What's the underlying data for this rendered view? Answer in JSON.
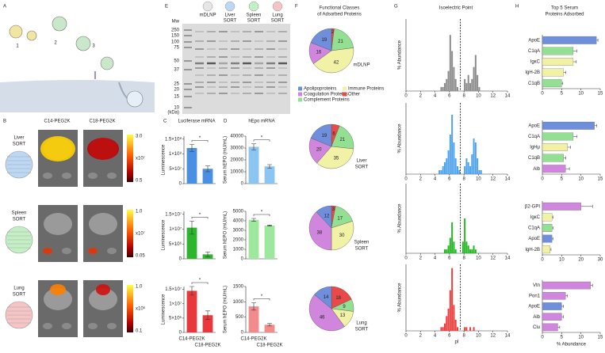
{
  "panels": {
    "letters": [
      "A",
      "B",
      "C",
      "D",
      "E",
      "F",
      "G",
      "H"
    ],
    "A": {
      "steps": [
        "1",
        "2",
        "3"
      ]
    },
    "B": {
      "columns": [
        "C14-PEG2K",
        "C18-PEG2K"
      ],
      "rows": [
        [
          "Liver",
          "SORT"
        ],
        [
          "Spleen",
          "SORT"
        ],
        [
          "Lung",
          "SORT"
        ]
      ],
      "colorbars": [
        [
          "3.0",
          "x10⁷",
          "0.5"
        ],
        [
          "1.0",
          "x10⁷",
          "0.05"
        ],
        [
          "1.0",
          "x10⁶",
          "0.1"
        ]
      ]
    },
    "C": {
      "title": "Luciferase mRNA"
    },
    "D": {
      "title": "hEpo mRNA"
    },
    "E": {
      "mw": "Mw",
      "unit": "(kDa)",
      "ladder": [
        "250",
        "150",
        "100",
        "75",
        "50",
        "37",
        "25",
        "20",
        "15",
        "10"
      ],
      "lanes": [
        [
          "mDLNP"
        ],
        [
          "Liver",
          "SORT"
        ],
        [
          "Spleen",
          "SORT"
        ],
        [
          "Lung",
          "SORT"
        ]
      ]
    },
    "F": {
      "title": [
        "Functional Classes",
        "of Adsorbed Proteins"
      ],
      "legend": [
        {
          "name": "Apolipoproteins",
          "color": "#6f8fdc"
        },
        {
          "name": "Coagulation Proteins",
          "color": "#cf86dc"
        },
        {
          "name": "Complement Proteins",
          "color": "#93e093"
        },
        {
          "name": "Immune Proteins",
          "color": "#f2f2a6"
        },
        {
          "name": "Other",
          "color": "#e84a4a"
        }
      ]
    },
    "G": {
      "title": "Isoelectric Point"
    },
    "H": {
      "title": [
        "Top 5 Serum",
        "Proteins Adsorbed"
      ]
    }
  },
  "chart_data": [
    {
      "type": "bar",
      "ylabel": "Luminescence",
      "categories": [
        null,
        null
      ],
      "values": [
        120000000,
        50000000
      ],
      "errors": [
        12000000,
        10000000
      ],
      "color": "#4a90e2",
      "ylim": [
        0,
        160000000
      ],
      "yticks": [
        0,
        {
          "value": 50000000,
          "label": "5×10⁷"
        },
        {
          "value": 100000000,
          "label": "1×10⁸"
        },
        {
          "value": 150000000,
          "label": "1.5×10⁸"
        }
      ],
      "annotation": "*"
    },
    {
      "type": "bar",
      "ylabel": "Luminescence",
      "categories": [
        null,
        null
      ],
      "values": [
        10500000,
        1500000
      ],
      "errors": [
        2200000,
        800000
      ],
      "color": "#2db52d",
      "ylim": [
        0,
        16000000
      ],
      "yticks": [
        0,
        {
          "value": 5000000,
          "label": "5×10⁶"
        },
        {
          "value": 10000000,
          "label": "1×10⁷"
        },
        {
          "value": 15000000,
          "label": "1.5×10⁷"
        }
      ],
      "annotation": "*"
    },
    {
      "type": "bar",
      "ylabel": "Luminescence",
      "categories": [
        "C14-PEG2K",
        "C18-PEG2K"
      ],
      "values": [
        14500000,
        6000000
      ],
      "errors": [
        1500000,
        1500000
      ],
      "color": "#e8383d",
      "ylim": [
        0,
        16000000
      ],
      "yticks": [
        0,
        {
          "value": 5000000,
          "label": "5×10⁶"
        },
        {
          "value": 10000000,
          "label": "1×10⁷"
        },
        {
          "value": 15000000,
          "label": "1.5×10⁷"
        }
      ],
      "annotation": "*"
    },
    {
      "type": "bar",
      "ylabel": "Serum hEPO (mU/mL)",
      "categories": [
        null,
        null
      ],
      "values": [
        31000,
        14500
      ],
      "errors": [
        2500,
        1500
      ],
      "color": "#8cc4f2",
      "ylim": [
        0,
        40000
      ],
      "yticks": [
        0,
        10000,
        20000,
        30000,
        40000
      ],
      "annotation": "*"
    },
    {
      "type": "bar",
      "ylabel": "Serum hEPO (mU/mL)",
      "categories": [
        null,
        null
      ],
      "values": [
        4100,
        3500
      ],
      "errors": [
        150,
        60
      ],
      "color": "#9de89d",
      "ylim": [
        0,
        5000
      ],
      "yticks": [
        0,
        1000,
        2000,
        3000,
        4000,
        5000
      ],
      "annotation": "*"
    },
    {
      "type": "bar",
      "ylabel": "Serum hEPO (mU/mL)",
      "categories": [
        "C14-PEG2K",
        "C18-PEG2K"
      ],
      "values": [
        850,
        250
      ],
      "errors": [
        120,
        40
      ],
      "color": "#f28c8c",
      "ylim": [
        0,
        1500
      ],
      "yticks": [
        0,
        500,
        1000,
        1500
      ],
      "annotation": "*"
    },
    {
      "type": "pie",
      "values": [
        2,
        21,
        42,
        16,
        19
      ],
      "colors": [
        "#e84a4a",
        "#93e093",
        "#f2f2a6",
        "#cf86dc",
        "#6f8fdc"
      ],
      "label": [
        "mDLNP"
      ]
    },
    {
      "type": "pie",
      "values": [
        6,
        21,
        35,
        20,
        19
      ],
      "colors": [
        "#e84a4a",
        "#93e093",
        "#f2f2a6",
        "#cf86dc",
        "#6f8fdc"
      ],
      "label": [
        "Liver",
        "SORT"
      ]
    },
    {
      "type": "pie",
      "values": [
        3,
        17,
        30,
        38,
        12
      ],
      "colors": [
        "#e84a4a",
        "#93e093",
        "#f2f2a6",
        "#cf86dc",
        "#6f8fdc"
      ],
      "label": [
        "Spleen",
        "SORT"
      ]
    },
    {
      "type": "pie",
      "values": [
        18,
        9,
        13,
        46,
        14
      ],
      "colors": [
        "#e84a4a",
        "#93e093",
        "#f2f2a6",
        "#cf86dc",
        "#6f8fdc"
      ],
      "label": [
        "Lung",
        "SORT"
      ]
    },
    {
      "type": "histogram",
      "ylabel": "% Abundance",
      "bins": [
        4,
        4.25,
        4.5,
        4.75,
        5,
        5.25,
        5.5,
        5.75,
        6,
        6.25,
        6.5,
        6.75,
        7,
        7.25,
        7.5,
        7.75,
        8,
        8.25,
        8.5,
        8.75,
        9,
        9.25,
        9.5,
        9.75,
        10,
        10.25,
        10.5,
        10.75,
        11
      ],
      "values": [
        0,
        0,
        0,
        1,
        1,
        2,
        3,
        5,
        14,
        10,
        6,
        3,
        1,
        0,
        0,
        0,
        3,
        2,
        4,
        2,
        3,
        6,
        9,
        4,
        1,
        0,
        0,
        0
      ],
      "color": "#8c8c8c",
      "xlim": [
        0,
        14
      ],
      "xticks": [
        0,
        2,
        4,
        6,
        8,
        10,
        12,
        14
      ],
      "ylim": [
        0,
        18
      ],
      "refline": 7.5
    },
    {
      "type": "histogram",
      "ylabel": "% Abundance",
      "bins": [
        4,
        4.25,
        4.5,
        4.75,
        5,
        5.25,
        5.5,
        5.75,
        6,
        6.25,
        6.5,
        6.75,
        7,
        7.25,
        7.5,
        7.75,
        8,
        8.25,
        8.5,
        8.75,
        9,
        9.25,
        9.5,
        9.75,
        10,
        10.25,
        10.5,
        10.75,
        11
      ],
      "values": [
        0,
        0,
        1,
        1,
        2,
        3,
        4,
        6,
        10,
        15,
        8,
        4,
        2,
        1,
        0,
        0,
        2,
        4,
        3,
        2,
        5,
        9,
        8,
        4,
        1,
        1,
        0,
        0
      ],
      "color": "#4da3f0",
      "xlim": [
        0,
        14
      ],
      "xticks": [
        0,
        2,
        4,
        6,
        8,
        10,
        12,
        14
      ],
      "ylim": [
        0,
        18
      ],
      "refline": 7.5
    },
    {
      "type": "histogram",
      "ylabel": "% Abundance",
      "bins": [
        4,
        4.25,
        4.5,
        4.75,
        5,
        5.25,
        5.5,
        5.75,
        6,
        6.25,
        6.5,
        6.75,
        7,
        7.25,
        7.5,
        7.75,
        8,
        8.25,
        8.5,
        8.75,
        9,
        9.25,
        9.5,
        9.75,
        10,
        10.25,
        10.5,
        10.75,
        11
      ],
      "values": [
        0,
        0,
        0,
        0,
        0,
        1,
        1,
        2,
        4,
        8,
        3,
        1,
        0,
        0,
        0,
        3,
        9,
        3,
        2,
        1,
        1,
        2,
        1,
        0,
        0,
        0,
        0,
        0
      ],
      "color": "#22b822",
      "xlim": [
        0,
        14
      ],
      "xticks": [
        0,
        2,
        4,
        6,
        8,
        10,
        12,
        14
      ],
      "ylim": [
        0,
        18
      ],
      "refline": 7.5
    },
    {
      "type": "histogram",
      "ylabel": "% Abundance",
      "xlabel": "pI",
      "bins": [
        4,
        4.25,
        4.5,
        4.75,
        5,
        5.25,
        5.5,
        5.75,
        6,
        6.25,
        6.5,
        6.75,
        7,
        7.25,
        7.5,
        7.75,
        8,
        8.25,
        8.5,
        8.75,
        9,
        9.25,
        9.5,
        9.75,
        10,
        10.25,
        10.5,
        10.75,
        11
      ],
      "values": [
        0,
        0,
        0,
        1,
        1,
        2,
        4,
        6,
        11,
        17,
        7,
        3,
        1,
        0,
        0,
        0,
        1,
        1,
        0,
        1,
        0,
        1,
        0,
        0,
        0,
        0,
        0,
        0
      ],
      "color": "#f03c3c",
      "xlim": [
        0,
        14
      ],
      "xticks": [
        0,
        2,
        4,
        6,
        8,
        10,
        12,
        14
      ],
      "ylim": [
        0,
        18
      ],
      "refline": 7.5
    },
    {
      "type": "hbar",
      "categories": [
        "ApoE",
        "C1qA",
        "IgκC",
        "IgH-2B",
        "C1qB"
      ],
      "values": [
        14,
        8,
        8,
        5.5,
        5
      ],
      "errors": [
        0.4,
        1,
        0.8,
        0.6,
        0.3
      ],
      "colors": [
        "#6f8fdc",
        "#93e093",
        "#f2f2a6",
        "#f2f2a6",
        "#93e093"
      ],
      "xlim": [
        0,
        15
      ],
      "xticks": [
        0,
        5,
        10,
        15
      ]
    },
    {
      "type": "hbar",
      "categories": [
        "ApoE",
        "C1qA",
        "IgHμ",
        "C1qB",
        "Alb"
      ],
      "values": [
        13.5,
        8,
        6.5,
        5.5,
        6
      ],
      "errors": [
        0.6,
        1,
        0.8,
        0.6,
        1
      ],
      "colors": [
        "#6f8fdc",
        "#93e093",
        "#f2f2a6",
        "#93e093",
        "#cf86dc"
      ],
      "xlim": [
        0,
        15
      ],
      "xticks": [
        0,
        5,
        10,
        15
      ]
    },
    {
      "type": "hbar",
      "categories": [
        "β2-GPI",
        "IgκC",
        "C1qA",
        "ApoE",
        "IgH-2B"
      ],
      "values": [
        20,
        5,
        5,
        5,
        4
      ],
      "errors": [
        6,
        0.5,
        0.5,
        0.5,
        0.5
      ],
      "colors": [
        "#cf86dc",
        "#f2f2a6",
        "#93e093",
        "#6f8fdc",
        "#f2f2a6"
      ],
      "xlim": [
        0,
        30
      ],
      "xticks": [
        0,
        10,
        20,
        30
      ]
    },
    {
      "type": "hbar",
      "xlabel": "% Abundance",
      "categories": [
        "Vtn",
        "Pon1",
        "ApoE",
        "Alb",
        "Clu"
      ],
      "values": [
        12.5,
        6,
        5,
        5,
        4
      ],
      "errors": [
        0.5,
        0.5,
        0.5,
        0.5,
        0.5
      ],
      "colors": [
        "#cf86dc",
        "#cf86dc",
        "#6f8fdc",
        "#cf86dc",
        "#cf86dc"
      ],
      "xlim": [
        0,
        15
      ],
      "xticks": [
        0,
        5,
        10,
        15
      ]
    }
  ]
}
